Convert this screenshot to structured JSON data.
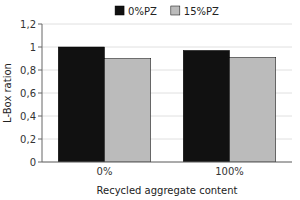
{
  "chart_data": {
    "type": "bar",
    "categories": [
      "0%",
      "100%"
    ],
    "series": [
      {
        "name": "0%PZ",
        "color": "#111111",
        "values": [
          1.0,
          0.97
        ]
      },
      {
        "name": "15%PZ",
        "color": "#bbbbbb",
        "values": [
          0.9,
          0.91
        ]
      }
    ],
    "xlabel": "Recycled aggregate content",
    "ylabel": "L-Box ration",
    "ylim": [
      0,
      1.2
    ],
    "yticks": [
      0,
      {
        "value": 0.2,
        "label": "0,2"
      },
      {
        "value": 0.4,
        "label": "0,4"
      },
      {
        "value": 0.6,
        "label": "0,6"
      },
      {
        "value": 0.8,
        "label": "0,8"
      },
      1,
      {
        "value": 1.2,
        "label": "1,2"
      }
    ],
    "grid": true,
    "legend": "top"
  }
}
